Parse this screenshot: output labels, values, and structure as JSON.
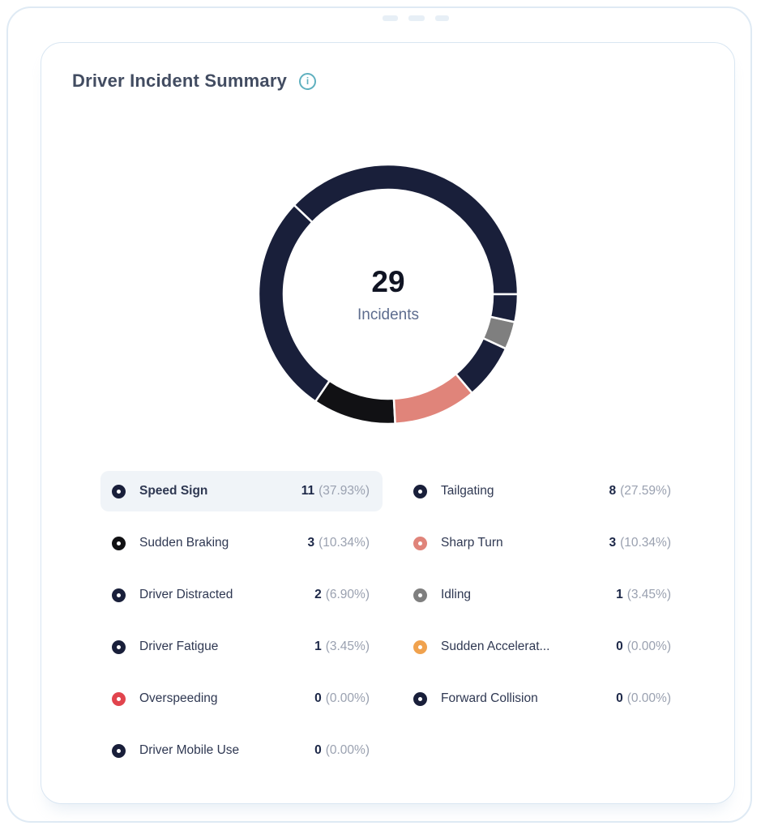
{
  "card": {
    "title": "Driver Incident Summary"
  },
  "chart_data": {
    "type": "donut",
    "title": "Driver Incident Summary",
    "center_value": "29",
    "center_label": "Incidents",
    "total": 29,
    "start_angle": "east",
    "direction": "counterclockwise",
    "legend_position": "bottom",
    "separator_color": "#ffffff",
    "series": [
      {
        "name": "Speed Sign",
        "value": 11,
        "percent": "37.93%",
        "color": "#191f3a",
        "highlighted": true
      },
      {
        "name": "Tailgating",
        "value": 8,
        "percent": "27.59%",
        "color": "#191f3a",
        "highlighted": false
      },
      {
        "name": "Sudden Braking",
        "value": 3,
        "percent": "10.34%",
        "color": "#111114",
        "highlighted": false
      },
      {
        "name": "Sharp Turn",
        "value": 3,
        "percent": "10.34%",
        "color": "#e0847a",
        "highlighted": false
      },
      {
        "name": "Driver Distracted",
        "value": 2,
        "percent": "6.90%",
        "color": "#191f3a",
        "highlighted": false
      },
      {
        "name": "Idling",
        "value": 1,
        "percent": "3.45%",
        "color": "#7f7f7f",
        "highlighted": false
      },
      {
        "name": "Driver Fatigue",
        "value": 1,
        "percent": "3.45%",
        "color": "#191f3a",
        "highlighted": false
      },
      {
        "name": "Sudden Accelerat...",
        "value": 0,
        "percent": "0.00%",
        "color": "#f0a24e",
        "highlighted": false
      },
      {
        "name": "Overspeeding",
        "value": 0,
        "percent": "0.00%",
        "color": "#e1444d",
        "highlighted": false
      },
      {
        "name": "Forward Collision",
        "value": 0,
        "percent": "0.00%",
        "color": "#191f3a",
        "highlighted": false
      },
      {
        "name": "Driver Mobile Use",
        "value": 0,
        "percent": "0.00%",
        "color": "#191f3a",
        "highlighted": false
      }
    ]
  },
  "colors": {
    "info_accent": "#5fb0bf",
    "card_border": "#d9e6f2",
    "outer_border": "#dfeaf4",
    "highlight_row_bg": "#f0f4f8",
    "title_text": "#424c61",
    "label_text": "#2f3852",
    "count_text": "#1c2747",
    "percent_text": "#9aa1b0",
    "center_value_text": "#101423",
    "center_label_text": "#5d6c8e"
  }
}
